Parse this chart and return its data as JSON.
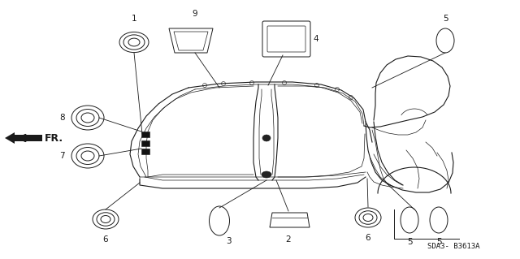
{
  "bg_color": "#ffffff",
  "fig_width": 6.4,
  "fig_height": 3.19,
  "part_code": "SDA3— B3613A",
  "fr_label": "FR.",
  "line_color": "#1a1a1a",
  "lw": 0.7
}
